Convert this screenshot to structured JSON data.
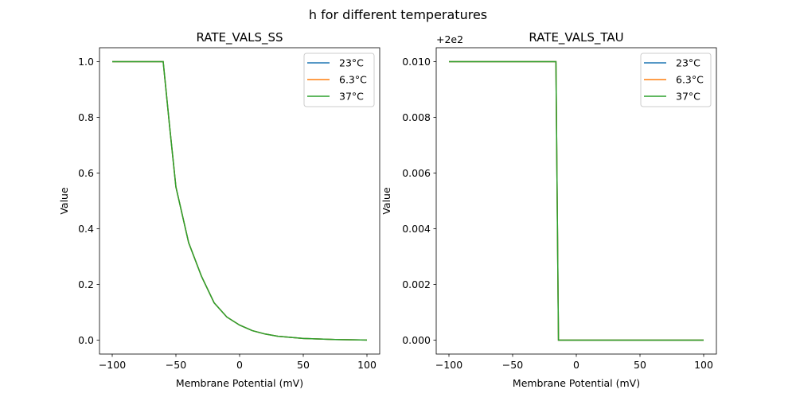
{
  "suptitle": "h for different temperatures",
  "colors": {
    "23°C": "#1f77b4",
    "6.3°C": "#ff7f0e",
    "37°C": "#2ca02c"
  },
  "chart_data": [
    {
      "type": "line",
      "title": "RATE_VALS_SS",
      "xlabel": "Membrane Potential (mV)",
      "ylabel": "Value",
      "xlim": [
        -110,
        110
      ],
      "ylim": [
        -0.05,
        1.05
      ],
      "xticks": [
        -100,
        -50,
        0,
        50,
        100
      ],
      "xtick_labels": [
        "−100",
        "−50",
        "0",
        "50",
        "100"
      ],
      "yticks": [
        0.0,
        0.2,
        0.4,
        0.6,
        0.8,
        1.0
      ],
      "ytick_labels": [
        "0.0",
        "0.2",
        "0.4",
        "0.6",
        "0.8",
        "1.0"
      ],
      "offset_text": "",
      "legend": "top-right",
      "x": [
        -100,
        -60,
        -55,
        -50,
        -40,
        -30,
        -20,
        -10,
        0,
        10,
        20,
        30,
        50,
        75,
        100
      ],
      "series": [
        {
          "name": "23°C",
          "values": [
            1,
            1,
            0.77,
            0.55,
            0.35,
            0.23,
            0.134,
            0.083,
            0.054,
            0.034,
            0.022,
            0.014,
            0.006,
            0.002,
            0.0005
          ]
        },
        {
          "name": "6.3°C",
          "values": [
            1,
            1,
            0.77,
            0.55,
            0.35,
            0.23,
            0.134,
            0.083,
            0.054,
            0.034,
            0.022,
            0.014,
            0.006,
            0.002,
            0.0005
          ]
        },
        {
          "name": "37°C",
          "values": [
            1,
            1,
            0.77,
            0.55,
            0.35,
            0.23,
            0.134,
            0.083,
            0.054,
            0.034,
            0.022,
            0.014,
            0.006,
            0.002,
            0.0005
          ]
        }
      ]
    },
    {
      "type": "line",
      "title": "RATE_VALS_TAU",
      "xlabel": "Membrane Potential (mV)",
      "ylabel": "Value",
      "xlim": [
        -110,
        110
      ],
      "ylim": [
        -0.0005,
        0.0105
      ],
      "xticks": [
        -100,
        -50,
        0,
        50,
        100
      ],
      "xtick_labels": [
        "−100",
        "−50",
        "0",
        "50",
        "100"
      ],
      "yticks": [
        0.0,
        0.002,
        0.004,
        0.006,
        0.008,
        0.01
      ],
      "ytick_labels": [
        "0.000",
        "0.002",
        "0.004",
        "0.006",
        "0.008",
        "0.010"
      ],
      "offset_text": "+2e2",
      "legend": "top-right",
      "x": [
        -100,
        -16,
        -14,
        100
      ],
      "series": [
        {
          "name": "23°C",
          "values": [
            0.01,
            0.01,
            0,
            0
          ]
        },
        {
          "name": "6.3°C",
          "values": [
            0.01,
            0.01,
            0,
            0
          ]
        },
        {
          "name": "37°C",
          "values": [
            0.01,
            0.01,
            0,
            0
          ]
        }
      ]
    }
  ]
}
